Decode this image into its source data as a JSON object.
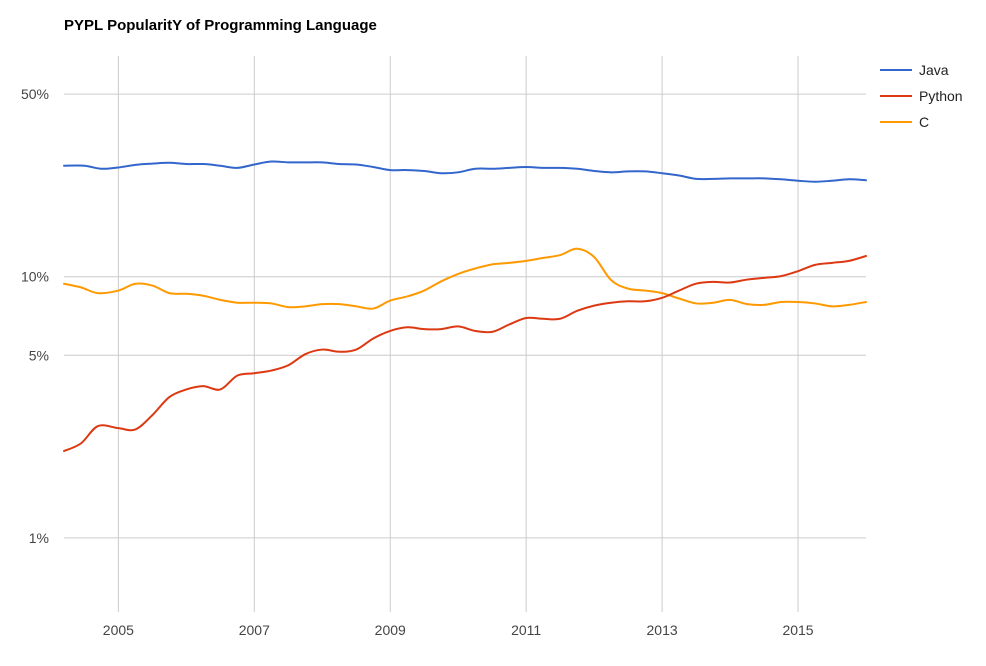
{
  "chart_data": {
    "type": "line",
    "title": "PYPL PopularitY of Programming Language",
    "xlabel": "",
    "ylabel": "",
    "y_scale": "log",
    "xlim": [
      2004.2,
      2016.0
    ],
    "ylim": [
      0.52,
      70
    ],
    "x_ticks": [
      {
        "value": 2005,
        "label": "2005"
      },
      {
        "value": 2007,
        "label": "2007"
      },
      {
        "value": 2009,
        "label": "2009"
      },
      {
        "value": 2011,
        "label": "2011"
      },
      {
        "value": 2013,
        "label": "2013"
      },
      {
        "value": 2015,
        "label": "2015"
      }
    ],
    "y_ticks": [
      {
        "value": 50,
        "label": "50%"
      },
      {
        "value": 10,
        "label": "10%"
      },
      {
        "value": 5,
        "label": "5%"
      },
      {
        "value": 1,
        "label": "1%"
      }
    ],
    "grid": true,
    "legend_position": "top-right",
    "series": [
      {
        "name": "Java",
        "color": "#3366cc",
        "points": [
          [
            2004.2,
            26.6
          ],
          [
            2004.5,
            26.6
          ],
          [
            2004.75,
            25.9
          ],
          [
            2005.0,
            26.2
          ],
          [
            2005.25,
            26.8
          ],
          [
            2005.5,
            27.1
          ],
          [
            2005.75,
            27.3
          ],
          [
            2006.0,
            27.0
          ],
          [
            2006.25,
            27.0
          ],
          [
            2006.5,
            26.6
          ],
          [
            2006.75,
            26.1
          ],
          [
            2007.0,
            26.9
          ],
          [
            2007.25,
            27.6
          ],
          [
            2007.5,
            27.4
          ],
          [
            2007.75,
            27.4
          ],
          [
            2008.0,
            27.4
          ],
          [
            2008.25,
            27.0
          ],
          [
            2008.5,
            26.9
          ],
          [
            2008.75,
            26.3
          ],
          [
            2009.0,
            25.6
          ],
          [
            2009.25,
            25.6
          ],
          [
            2009.5,
            25.4
          ],
          [
            2009.75,
            24.9
          ],
          [
            2010.0,
            25.1
          ],
          [
            2010.25,
            25.9
          ],
          [
            2010.5,
            25.9
          ],
          [
            2010.75,
            26.1
          ],
          [
            2011.0,
            26.3
          ],
          [
            2011.25,
            26.1
          ],
          [
            2011.5,
            26.1
          ],
          [
            2011.75,
            25.9
          ],
          [
            2012.0,
            25.4
          ],
          [
            2012.25,
            25.1
          ],
          [
            2012.5,
            25.3
          ],
          [
            2012.75,
            25.3
          ],
          [
            2013.0,
            24.9
          ],
          [
            2013.25,
            24.4
          ],
          [
            2013.5,
            23.7
          ],
          [
            2013.75,
            23.7
          ],
          [
            2014.0,
            23.8
          ],
          [
            2014.25,
            23.8
          ],
          [
            2014.5,
            23.8
          ],
          [
            2014.75,
            23.6
          ],
          [
            2015.0,
            23.3
          ],
          [
            2015.25,
            23.1
          ],
          [
            2015.5,
            23.3
          ],
          [
            2015.75,
            23.6
          ],
          [
            2016.0,
            23.4
          ]
        ]
      },
      {
        "name": "Python",
        "color": "#dc3912",
        "points": [
          [
            2004.2,
            2.15
          ],
          [
            2004.45,
            2.3
          ],
          [
            2004.7,
            2.68
          ],
          [
            2005.0,
            2.63
          ],
          [
            2005.25,
            2.6
          ],
          [
            2005.5,
            2.95
          ],
          [
            2005.75,
            3.46
          ],
          [
            2006.0,
            3.7
          ],
          [
            2006.25,
            3.81
          ],
          [
            2006.5,
            3.7
          ],
          [
            2006.75,
            4.18
          ],
          [
            2007.0,
            4.27
          ],
          [
            2007.25,
            4.37
          ],
          [
            2007.5,
            4.58
          ],
          [
            2007.75,
            5.05
          ],
          [
            2008.0,
            5.26
          ],
          [
            2008.25,
            5.16
          ],
          [
            2008.5,
            5.26
          ],
          [
            2008.75,
            5.8
          ],
          [
            2009.0,
            6.2
          ],
          [
            2009.25,
            6.4
          ],
          [
            2009.5,
            6.3
          ],
          [
            2009.75,
            6.3
          ],
          [
            2010.0,
            6.45
          ],
          [
            2010.25,
            6.2
          ],
          [
            2010.5,
            6.15
          ],
          [
            2010.75,
            6.56
          ],
          [
            2011.0,
            6.95
          ],
          [
            2011.25,
            6.9
          ],
          [
            2011.5,
            6.9
          ],
          [
            2011.75,
            7.4
          ],
          [
            2012.0,
            7.75
          ],
          [
            2012.25,
            7.95
          ],
          [
            2012.5,
            8.05
          ],
          [
            2012.75,
            8.05
          ],
          [
            2013.0,
            8.3
          ],
          [
            2013.25,
            8.85
          ],
          [
            2013.5,
            9.4
          ],
          [
            2013.75,
            9.55
          ],
          [
            2014.0,
            9.5
          ],
          [
            2014.25,
            9.75
          ],
          [
            2014.5,
            9.9
          ],
          [
            2014.75,
            10.05
          ],
          [
            2015.0,
            10.5
          ],
          [
            2015.25,
            11.1
          ],
          [
            2015.5,
            11.3
          ],
          [
            2015.75,
            11.5
          ],
          [
            2016.0,
            12.0
          ]
        ]
      },
      {
        "name": "C",
        "color": "#ff9900",
        "points": [
          [
            2004.2,
            9.4
          ],
          [
            2004.45,
            9.1
          ],
          [
            2004.7,
            8.65
          ],
          [
            2005.0,
            8.85
          ],
          [
            2005.25,
            9.4
          ],
          [
            2005.5,
            9.25
          ],
          [
            2005.75,
            8.65
          ],
          [
            2006.0,
            8.6
          ],
          [
            2006.25,
            8.45
          ],
          [
            2006.5,
            8.15
          ],
          [
            2006.75,
            7.95
          ],
          [
            2007.0,
            7.95
          ],
          [
            2007.25,
            7.9
          ],
          [
            2007.5,
            7.65
          ],
          [
            2007.75,
            7.7
          ],
          [
            2008.0,
            7.85
          ],
          [
            2008.25,
            7.85
          ],
          [
            2008.5,
            7.7
          ],
          [
            2008.75,
            7.55
          ],
          [
            2009.0,
            8.1
          ],
          [
            2009.25,
            8.4
          ],
          [
            2009.5,
            8.85
          ],
          [
            2009.75,
            9.6
          ],
          [
            2010.0,
            10.25
          ],
          [
            2010.25,
            10.75
          ],
          [
            2010.5,
            11.15
          ],
          [
            2010.75,
            11.3
          ],
          [
            2011.0,
            11.5
          ],
          [
            2011.25,
            11.8
          ],
          [
            2011.5,
            12.1
          ],
          [
            2011.75,
            12.8
          ],
          [
            2012.0,
            11.9
          ],
          [
            2012.25,
            9.7
          ],
          [
            2012.5,
            9.0
          ],
          [
            2012.75,
            8.85
          ],
          [
            2013.0,
            8.65
          ],
          [
            2013.25,
            8.25
          ],
          [
            2013.5,
            7.9
          ],
          [
            2013.75,
            7.95
          ],
          [
            2014.0,
            8.15
          ],
          [
            2014.25,
            7.85
          ],
          [
            2014.5,
            7.8
          ],
          [
            2014.75,
            8.0
          ],
          [
            2015.0,
            8.0
          ],
          [
            2015.25,
            7.9
          ],
          [
            2015.5,
            7.7
          ],
          [
            2015.75,
            7.8
          ],
          [
            2016.0,
            8.0
          ]
        ]
      }
    ]
  }
}
